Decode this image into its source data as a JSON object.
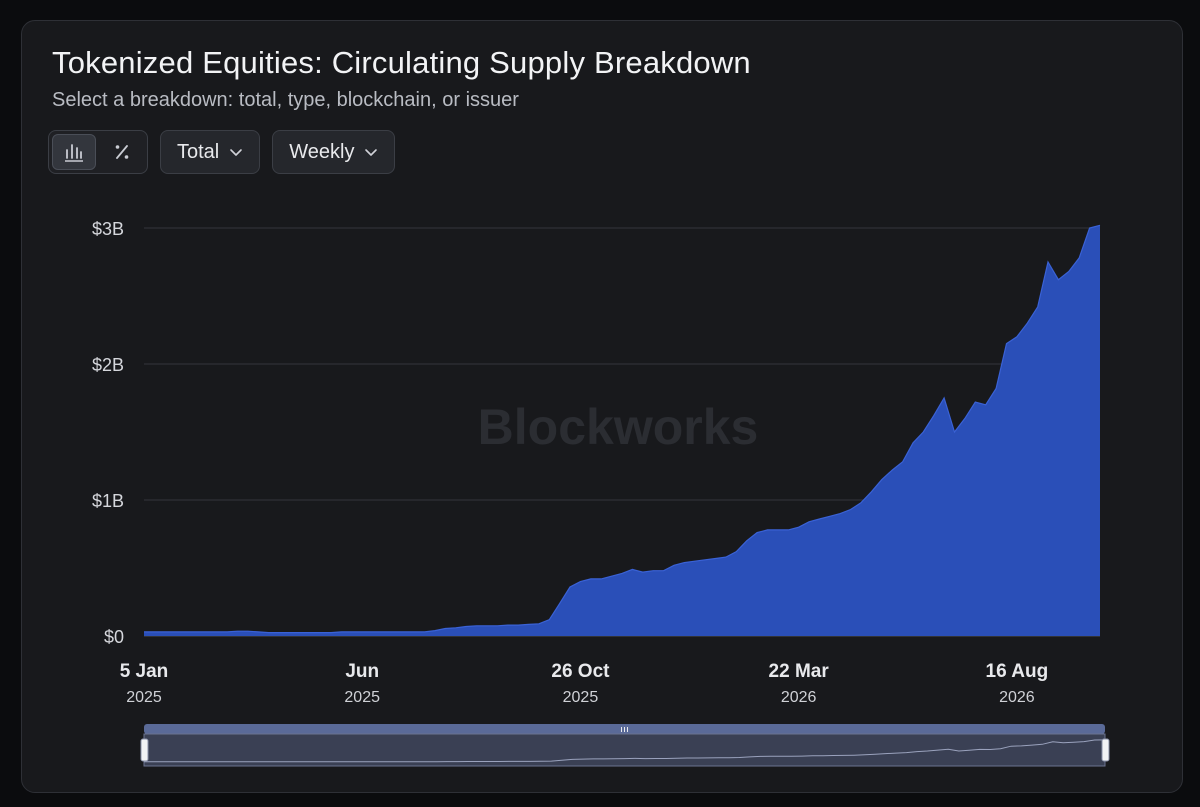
{
  "header": {
    "title": "Tokenized Equities: Circulating Supply Breakdown",
    "subtitle": "Select a breakdown: total, type, blockchain, or issuer"
  },
  "toolbar": {
    "chart_type_options": [
      "bar-chart-icon",
      "percent-icon"
    ],
    "breakdown": "Total",
    "interval": "Weekly"
  },
  "watermark": "Blockworks",
  "colors": {
    "area": "#2a4fb8",
    "area_stroke": "#3a62d6",
    "background": "#18191c",
    "grid": "#3a3c42"
  },
  "chart_data": {
    "type": "area",
    "title": "Tokenized Equities: Circulating Supply Breakdown",
    "xlabel": "",
    "ylabel": "",
    "ylim": [
      0,
      3000000000
    ],
    "yticks": [
      {
        "value": 0,
        "label": "$0"
      },
      {
        "value": 1000000000,
        "label": "$1B"
      },
      {
        "value": 2000000000,
        "label": "$2B"
      },
      {
        "value": 3000000000,
        "label": "$3B"
      }
    ],
    "xticks": [
      {
        "week": 0,
        "label": "5 Jan",
        "sublabel": "2025"
      },
      {
        "week": 21,
        "label": "Jun",
        "sublabel": "2025"
      },
      {
        "week": 42,
        "label": "26 Oct",
        "sublabel": "2025"
      },
      {
        "week": 63,
        "label": "22 Mar",
        "sublabel": "2026"
      },
      {
        "week": 84,
        "label": "16 Aug",
        "sublabel": "2026"
      }
    ],
    "grid": true,
    "series": [
      {
        "values": [
          0.03,
          0.03,
          0.03,
          0.03,
          0.03,
          0.03,
          0.03,
          0.03,
          0.03,
          0.035,
          0.035,
          0.03,
          0.025,
          0.025,
          0.025,
          0.025,
          0.025,
          0.025,
          0.025,
          0.03,
          0.03,
          0.03,
          0.03,
          0.03,
          0.03,
          0.03,
          0.03,
          0.03,
          0.04,
          0.055,
          0.06,
          0.07,
          0.075,
          0.075,
          0.075,
          0.08,
          0.08,
          0.085,
          0.09,
          0.12,
          0.24,
          0.36,
          0.4,
          0.42,
          0.42,
          0.44,
          0.46,
          0.49,
          0.47,
          0.48,
          0.48,
          0.52,
          0.54,
          0.55,
          0.56,
          0.57,
          0.58,
          0.62,
          0.7,
          0.76,
          0.78,
          0.78,
          0.78,
          0.8,
          0.84,
          0.86,
          0.88,
          0.9,
          0.93,
          0.98,
          1.06,
          1.15,
          1.22,
          1.28,
          1.42,
          1.5,
          1.62,
          1.75,
          1.5,
          1.6,
          1.72,
          1.7,
          1.82,
          2.15,
          2.2,
          2.3,
          2.42,
          2.75,
          2.62,
          2.68,
          2.78,
          3.0,
          3.02
        ]
      }
    ],
    "unit": "USD billions (values in series); axis shows dollars"
  }
}
